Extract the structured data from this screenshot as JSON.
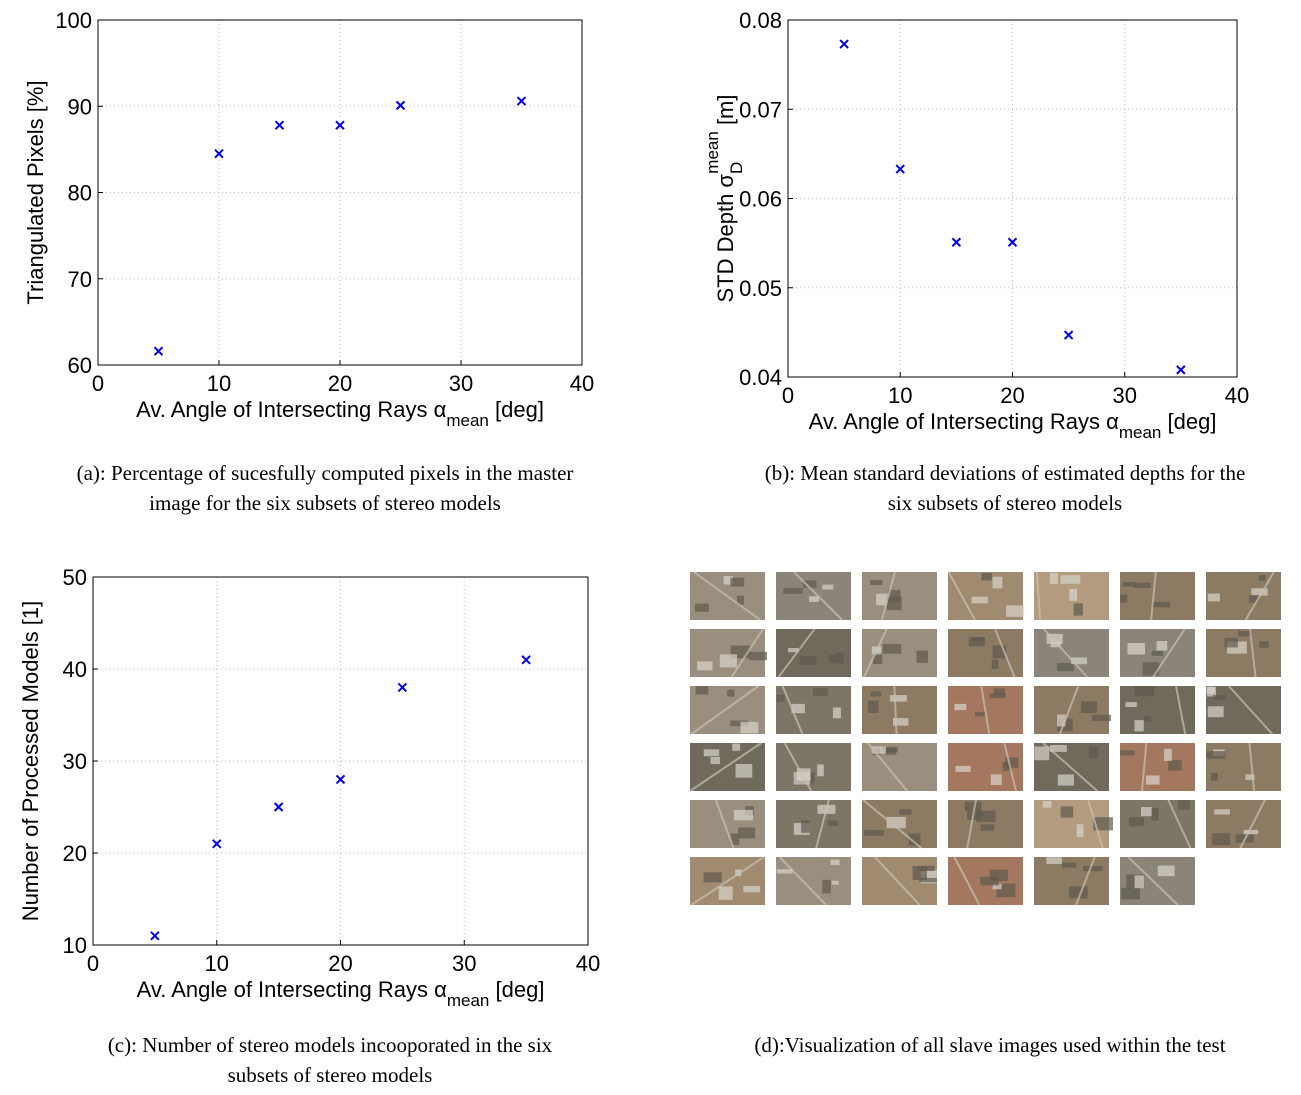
{
  "chart_data": [
    {
      "type": "scatter",
      "x": [
        5,
        10,
        15,
        20,
        25,
        35
      ],
      "values": [
        61.6,
        84.5,
        87.8,
        87.8,
        90.1,
        90.6
      ],
      "color": "#0000ee",
      "xlim": [
        0,
        40
      ],
      "xticks": [
        0,
        10,
        20,
        30,
        40
      ],
      "ylim": [
        60,
        100
      ],
      "yticks": [
        60,
        70,
        80,
        90,
        100
      ],
      "grid": true,
      "xlabel": [
        "Av. Angle of Intersecting Rays α",
        "mean",
        " [deg]"
      ],
      "ylabel": [
        "Triangulated Pixels [%]"
      ],
      "caption": [
        "(a): Percentage of sucesfully computed  pixels in the master",
        "image for the six subsets of stereo models"
      ]
    },
    {
      "type": "scatter",
      "x": [
        5,
        10,
        15,
        20,
        25,
        35
      ],
      "values": [
        0.0773,
        0.0633,
        0.0551,
        0.0551,
        0.0447,
        0.0408
      ],
      "color": "#0000ee",
      "xlim": [
        0,
        40
      ],
      "xticks": [
        0,
        10,
        20,
        30,
        40
      ],
      "ylim": [
        0.04,
        0.08
      ],
      "yticks": [
        0.04,
        0.05,
        0.06,
        0.07,
        0.08
      ],
      "grid": true,
      "xlabel": [
        "Av. Angle of Intersecting Rays α",
        "mean",
        " [deg]"
      ],
      "ylabel": [
        "STD Depth σ",
        "D",
        "mean",
        " [m]"
      ],
      "caption": [
        "(b): Mean standard deviations of estimated depths for the",
        "six subsets of stereo models"
      ]
    },
    {
      "type": "scatter",
      "x": [
        5,
        10,
        15,
        20,
        25,
        35
      ],
      "values": [
        11,
        21,
        25,
        28,
        38,
        41
      ],
      "color": "#0000ee",
      "xlim": [
        0,
        40
      ],
      "xticks": [
        0,
        10,
        20,
        30,
        40
      ],
      "ylim": [
        10,
        50
      ],
      "yticks": [
        10,
        20,
        30,
        40,
        50
      ],
      "grid": true,
      "xlabel": [
        "Av. Angle of Intersecting Rays α",
        "mean",
        " [deg]"
      ],
      "ylabel": [
        "Number of Processed Models [1]"
      ],
      "caption": [
        "(c): Number of stereo models incooporated in the six",
        "subsets of stereo models"
      ]
    }
  ],
  "panel_d": {
    "caption": [
      "(d):Visualization of all slave images used within the test"
    ]
  }
}
